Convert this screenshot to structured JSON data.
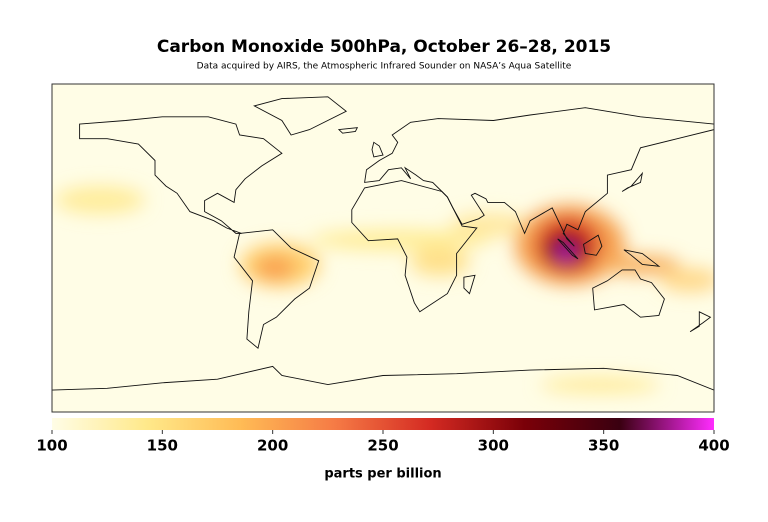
{
  "title": "Carbon Monoxide 500hPa, October 26–28, 2015",
  "subtitle": "Data acquired by AIRS, the Atmospheric Infrared Sounder on NASA’s Aqua Satellite",
  "colorbar": {
    "lim": [
      100,
      400
    ],
    "ticks": [
      100,
      150,
      200,
      250,
      300,
      350,
      400
    ],
    "label": "parts per billion",
    "colors": [
      "#fffde6",
      "#ffe98a",
      "#ffbb55",
      "#f57a45",
      "#d42a22",
      "#7a0008",
      "#3a0010",
      "#ff2cff"
    ]
  }
}
